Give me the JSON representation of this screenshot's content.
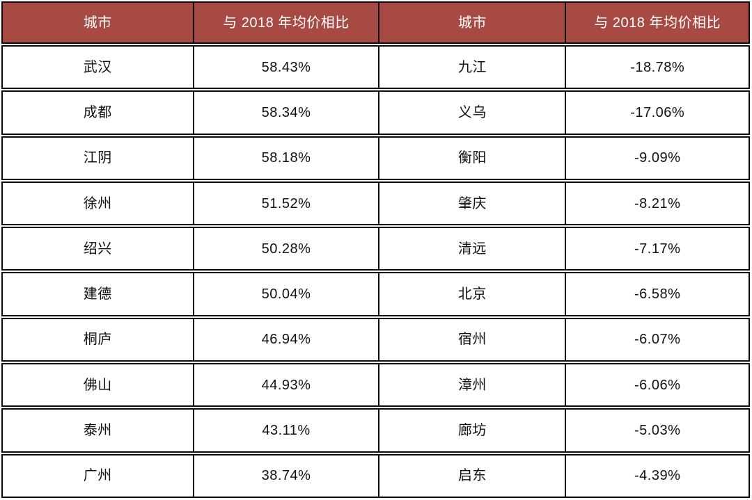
{
  "colors": {
    "background": "#FFFFFF",
    "header_bg": "#A84A44",
    "header_text": "#FFFFFF",
    "border": "#0A0A0A",
    "body_text": "#111111"
  },
  "chart_data": {
    "type": "table",
    "columns": [
      "城市",
      "与 2018 年均价相比",
      "城市",
      "与 2018 年均价相比"
    ],
    "rows": [
      [
        "武汉",
        "58.43%",
        "九江",
        "-18.78%"
      ],
      [
        "成都",
        "58.34%",
        "义乌",
        "-17.06%"
      ],
      [
        "江阴",
        "58.18%",
        "衡阳",
        "-9.09%"
      ],
      [
        "徐州",
        "51.52%",
        "肇庆",
        "-8.21%"
      ],
      [
        "绍兴",
        "50.28%",
        "清远",
        "-7.17%"
      ],
      [
        "建德",
        "50.04%",
        "北京",
        "-6.58%"
      ],
      [
        "桐庐",
        "46.94%",
        "宿州",
        "-6.07%"
      ],
      [
        "佛山",
        "44.93%",
        "漳州",
        "-6.06%"
      ],
      [
        "泰州",
        "43.11%",
        "廊坊",
        "-5.03%"
      ],
      [
        "广州",
        "38.74%",
        "启东",
        "-4.39%"
      ]
    ]
  }
}
